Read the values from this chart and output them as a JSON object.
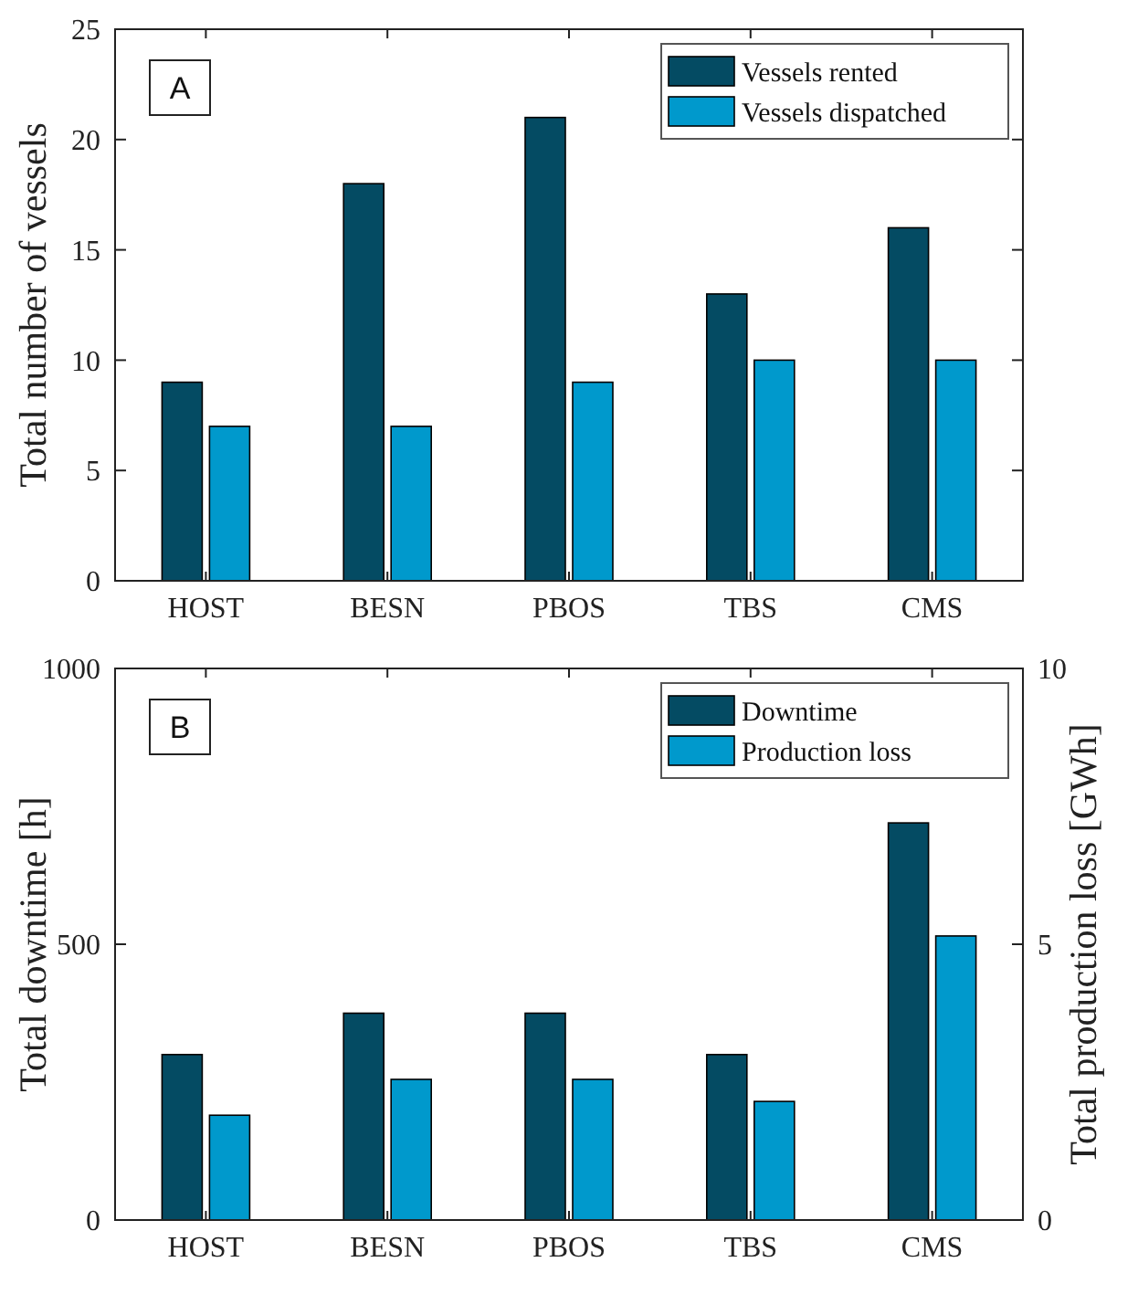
{
  "chart_data": [
    {
      "type": "bar",
      "ylabel": "Total number of vessels",
      "categories": [
        "HOST",
        "BESN",
        "PBOS",
        "TBS",
        "CMS"
      ],
      "series": [
        {
          "name": "Vessels rented",
          "color": "#044b63",
          "values": [
            9,
            18,
            21,
            13,
            16
          ]
        },
        {
          "name": "Vessels dispatched",
          "color": "#0099cc",
          "values": [
            7,
            7,
            9,
            10,
            10
          ]
        }
      ],
      "ylim": [
        0,
        25
      ],
      "yticks": [
        0,
        5,
        10,
        15,
        20,
        25
      ],
      "legend": "top right",
      "annotations": [
        "A"
      ]
    },
    {
      "type": "bar",
      "ylabel": "Total downtime [h]",
      "y2label": "Total production loss [GWh]",
      "categories": [
        "HOST",
        "BESN",
        "PBOS",
        "TBS",
        "CMS"
      ],
      "series": [
        {
          "name": "Downtime",
          "color": "#044b63",
          "values": [
            300,
            375,
            375,
            300,
            720
          ]
        },
        {
          "name": "Production loss",
          "color": "#0099cc",
          "values": [
            1.9,
            2.55,
            2.55,
            2.15,
            5.15
          ],
          "axis": "y2"
        }
      ],
      "ylim": [
        0,
        1000
      ],
      "yticks": [
        0,
        500,
        1000
      ],
      "y2lim": [
        0,
        10
      ],
      "y2ticks": [
        0,
        5,
        10
      ],
      "legend": "top right",
      "annotations": [
        "B"
      ]
    }
  ]
}
